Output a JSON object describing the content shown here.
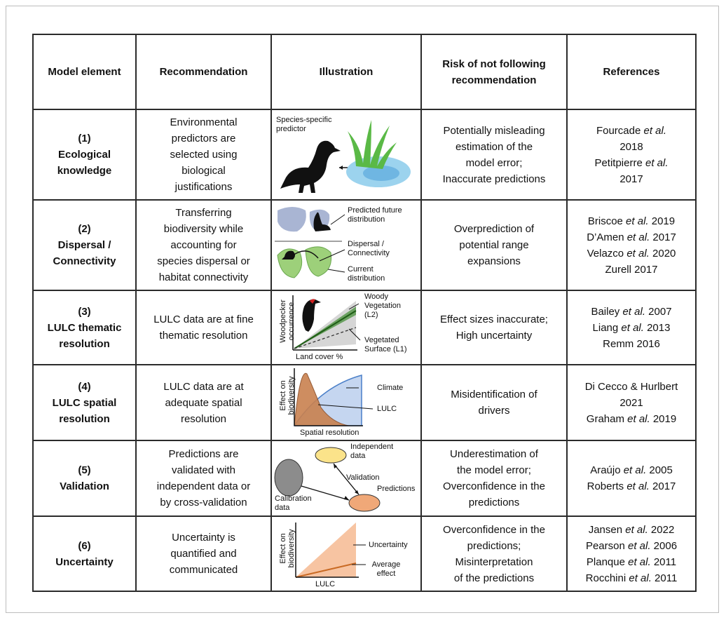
{
  "table": {
    "header": [
      "Model element",
      "Recommendation",
      "Illustration",
      "Risk of not following recommendation",
      "References"
    ],
    "rows": [
      {
        "number": "(1)",
        "name": "Ecological knowledge",
        "recommendation": [
          "Environmental",
          "predictors are",
          "selected using",
          "biological",
          "justifications"
        ],
        "illustration": [
          "Species-specific predictor"
        ],
        "risk": [
          "Potentially misleading",
          "estimation of the",
          "model error;",
          "Inaccurate predictions"
        ],
        "references": [
          [
            {
              "t": "Fourcade "
            },
            {
              "t": "et al.",
              "i": true
            }
          ],
          [
            {
              "t": "2018"
            }
          ],
          [
            {
              "t": "Petitpierre "
            },
            {
              "t": "et al.",
              "i": true
            }
          ],
          [
            {
              "t": "2017"
            }
          ]
        ]
      },
      {
        "number": "(2)",
        "name": "Dispersal / Connectivity",
        "recommendation": [
          "Transferring",
          "biodiversity while",
          "accounting for",
          "species dispersal or",
          "habitat connectivity"
        ],
        "illustration": [
          "Predicted future distribution",
          "Dispersal / Connectivity",
          "Current distribution"
        ],
        "risk": [
          "Overprediction of",
          "potential range",
          "expansions"
        ],
        "references": [
          [
            {
              "t": "Briscoe "
            },
            {
              "t": "et al.",
              "i": true
            },
            {
              "t": " 2019"
            }
          ],
          [
            {
              "t": "D’Amen "
            },
            {
              "t": "et al.",
              "i": true
            },
            {
              "t": " 2017"
            }
          ],
          [
            {
              "t": "Velazco "
            },
            {
              "t": "et al.",
              "i": true
            },
            {
              "t": " 2020"
            }
          ],
          [
            {
              "t": "Zurell 2017"
            }
          ]
        ]
      },
      {
        "number": "(3)",
        "name": "LULC thematic resolution",
        "recommendation": [
          "LULC data are at fine",
          "thematic resolution"
        ],
        "illustration": [
          "Woodpecker occurrence",
          "Woody Vegetation (L2)",
          "Vegetated Surface (L1)",
          "Land cover %"
        ],
        "risk": [
          "Effect sizes inaccurate;",
          "High uncertainty"
        ],
        "references": [
          [
            {
              "t": "Bailey "
            },
            {
              "t": "et al.",
              "i": true
            },
            {
              "t": " 2007"
            }
          ],
          [
            {
              "t": "Liang "
            },
            {
              "t": "et al.",
              "i": true
            },
            {
              "t": " 2013"
            }
          ],
          [
            {
              "t": "Remm 2016"
            }
          ]
        ]
      },
      {
        "number": "(4)",
        "name": "LULC spatial resolution",
        "recommendation": [
          "LULC data are at",
          "adequate spatial",
          "resolution"
        ],
        "illustration": [
          "Effect on biodiversity",
          "Climate",
          "LULC",
          "Spatial resolution"
        ],
        "risk": [
          "Misidentification of",
          "drivers"
        ],
        "references": [
          [
            {
              "t": "Di Cecco & Hurlbert"
            }
          ],
          [
            {
              "t": "2021"
            }
          ],
          [
            {
              "t": "Graham "
            },
            {
              "t": "et al.",
              "i": true
            },
            {
              "t": " 2019"
            }
          ]
        ]
      },
      {
        "number": "(5)",
        "name": "Validation",
        "recommendation": [
          "Predictions are",
          "validated with",
          "independent data or",
          "by cross-validation"
        ],
        "illustration": [
          "Independent data",
          "Validation",
          "Predictions",
          "Calibration data"
        ],
        "risk": [
          "Underestimation of",
          "the model error;",
          "Overconfidence in the",
          "predictions"
        ],
        "references": [
          [
            {
              "t": "Araújo "
            },
            {
              "t": "et al.",
              "i": true
            },
            {
              "t": " 2005"
            }
          ],
          [
            {
              "t": "Roberts "
            },
            {
              "t": "et al.",
              "i": true
            },
            {
              "t": " 2017"
            }
          ]
        ]
      },
      {
        "number": "(6)",
        "name": "Uncertainty",
        "recommendation": [
          "Uncertainty is",
          "quantified and",
          "communicated"
        ],
        "illustration": [
          "Effect on biodiversity",
          "Uncertainty",
          "Average effect",
          "LULC"
        ],
        "risk": [
          "Overconfidence in the",
          "predictions;",
          "Misinterpretation",
          "of the predictions"
        ],
        "references": [
          [
            {
              "t": "Jansen "
            },
            {
              "t": "et al.",
              "i": true
            },
            {
              "t": " 2022"
            }
          ],
          [
            {
              "t": "Pearson "
            },
            {
              "t": "et al.",
              "i": true
            },
            {
              "t": " 2006"
            }
          ],
          [
            {
              "t": "Planque "
            },
            {
              "t": "et al.",
              "i": true
            },
            {
              "t": " 2011"
            }
          ],
          [
            {
              "t": "Rocchini "
            },
            {
              "t": "et al.",
              "i": true
            },
            {
              "t": " 2011"
            }
          ]
        ]
      }
    ]
  }
}
